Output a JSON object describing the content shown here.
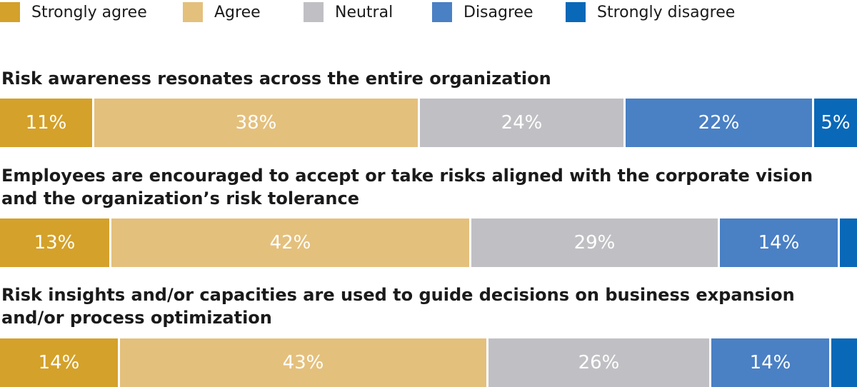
{
  "chart_data": {
    "type": "bar",
    "orientation": "horizontal-stacked-100",
    "legend_position": "top",
    "legend": [
      {
        "name": "Strongly agree",
        "color": "#d4a12a"
      },
      {
        "name": "Agree",
        "color": "#e4c07d"
      },
      {
        "name": "Neutral",
        "color": "#c0c0c4"
      },
      {
        "name": "Disagree",
        "color": "#4a80c4"
      },
      {
        "name": "Strongly disagree",
        "color": "#0a68b8"
      }
    ],
    "rows": [
      {
        "title": "Risk awareness resonates across the entire organization",
        "values": [
          11,
          38,
          24,
          22,
          5
        ],
        "labels": [
          "11%",
          "38%",
          "24%",
          "22%",
          "5%"
        ]
      },
      {
        "title": "Employees are encouraged to accept or take risks aligned with the corporate vision and the organization’s risk tolerance",
        "values": [
          13,
          42,
          29,
          14,
          2
        ],
        "labels": [
          "13%",
          "42%",
          "29%",
          "14%",
          ""
        ]
      },
      {
        "title": "Risk insights and/or capacities are used to guide decisions on business expansion and/or process optimization",
        "values": [
          14,
          43,
          26,
          14,
          3
        ],
        "labels": [
          "14%",
          "43%",
          "26%",
          "14%",
          ""
        ]
      }
    ]
  }
}
